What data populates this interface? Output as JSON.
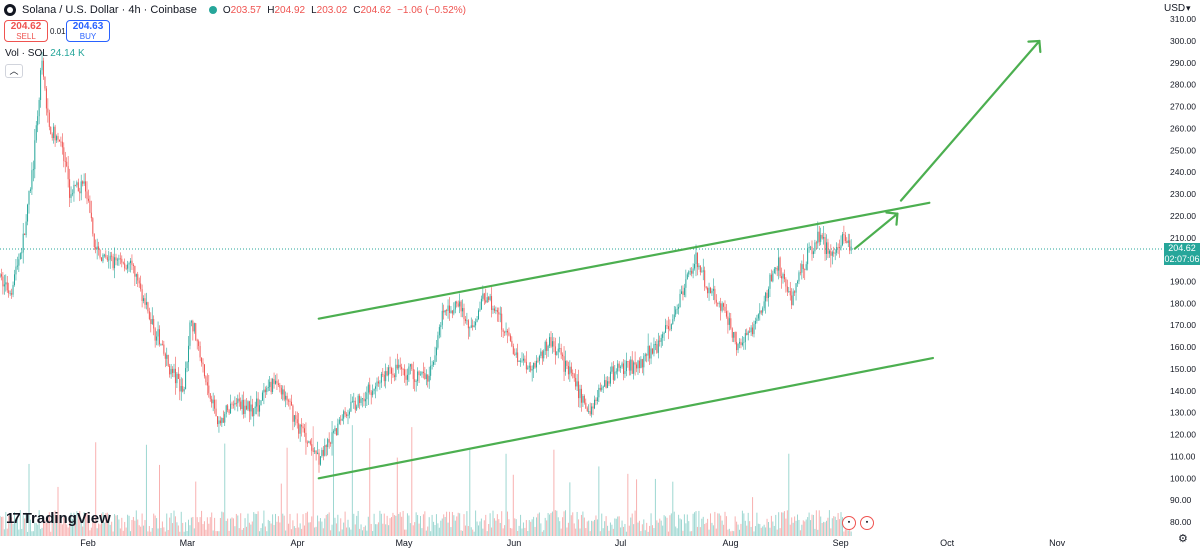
{
  "header": {
    "title": "Solana / U.S. Dollar · 4h · Coinbase",
    "o_label": "O",
    "o": "203.57",
    "h_label": "H",
    "h": "204.92",
    "l_label": "L",
    "l": "203.02",
    "c_label": "C",
    "c": "204.62",
    "change": "−1.06 (−0.52%)"
  },
  "trade": {
    "sell_price": "204.62",
    "sell_label": "SELL",
    "spread": "0.01",
    "buy_price": "204.63",
    "buy_label": "BUY"
  },
  "volume": {
    "label": "Vol · SOL",
    "value": "24.14 K"
  },
  "axis": {
    "currency": "USD",
    "current_price": "204.62",
    "countdown": "02:07:06"
  },
  "branding": {
    "name": "TradingView"
  },
  "colors": {
    "up": "#26a69a",
    "down": "#ef5350",
    "annotation": "#4caf50",
    "price_line": "#26a69a"
  },
  "chart_data": {
    "type": "candlestick",
    "y_ticks": [
      80,
      90,
      100,
      110,
      120,
      130,
      140,
      150,
      160,
      170,
      180,
      190,
      200,
      210,
      220,
      230,
      240,
      250,
      260,
      270,
      280,
      290,
      300,
      310
    ],
    "x_ticks": [
      "Feb",
      "Mar",
      "Apr",
      "May",
      "Jun",
      "Jul",
      "Aug",
      "Sep",
      "Oct",
      "Nov"
    ],
    "ylim": [
      76,
      311
    ],
    "price_path": [
      {
        "date": "2025-01-02",
        "price": 215
      },
      {
        "date": "2025-01-06",
        "price": 195
      },
      {
        "date": "2025-01-10",
        "price": 185
      },
      {
        "date": "2025-01-14",
        "price": 210
      },
      {
        "date": "2025-01-17",
        "price": 250
      },
      {
        "date": "2025-01-19",
        "price": 290
      },
      {
        "date": "2025-01-21",
        "price": 260
      },
      {
        "date": "2025-01-24",
        "price": 255
      },
      {
        "date": "2025-01-27",
        "price": 230
      },
      {
        "date": "2025-01-31",
        "price": 235
      },
      {
        "date": "2025-02-03",
        "price": 205
      },
      {
        "date": "2025-02-06",
        "price": 200
      },
      {
        "date": "2025-02-10",
        "price": 200
      },
      {
        "date": "2025-02-14",
        "price": 195
      },
      {
        "date": "2025-02-18",
        "price": 175
      },
      {
        "date": "2025-02-24",
        "price": 150
      },
      {
        "date": "2025-02-28",
        "price": 140
      },
      {
        "date": "2025-03-02",
        "price": 175
      },
      {
        "date": "2025-03-06",
        "price": 145
      },
      {
        "date": "2025-03-10",
        "price": 125
      },
      {
        "date": "2025-03-14",
        "price": 135
      },
      {
        "date": "2025-03-20",
        "price": 132
      },
      {
        "date": "2025-03-26",
        "price": 145
      },
      {
        "date": "2025-04-01",
        "price": 125
      },
      {
        "date": "2025-04-07",
        "price": 110
      },
      {
        "date": "2025-04-10",
        "price": 115
      },
      {
        "date": "2025-04-14",
        "price": 130
      },
      {
        "date": "2025-04-20",
        "price": 138
      },
      {
        "date": "2025-04-26",
        "price": 148
      },
      {
        "date": "2025-04-30",
        "price": 150
      },
      {
        "date": "2025-05-05",
        "price": 148
      },
      {
        "date": "2025-05-08",
        "price": 145
      },
      {
        "date": "2025-05-12",
        "price": 175
      },
      {
        "date": "2025-05-16",
        "price": 180
      },
      {
        "date": "2025-05-20",
        "price": 168
      },
      {
        "date": "2025-05-24",
        "price": 185
      },
      {
        "date": "2025-05-28",
        "price": 172
      },
      {
        "date": "2025-06-01",
        "price": 158
      },
      {
        "date": "2025-06-06",
        "price": 150
      },
      {
        "date": "2025-06-11",
        "price": 163
      },
      {
        "date": "2025-06-17",
        "price": 148
      },
      {
        "date": "2025-06-22",
        "price": 130
      },
      {
        "date": "2025-06-26",
        "price": 143
      },
      {
        "date": "2025-07-01",
        "price": 150
      },
      {
        "date": "2025-07-06",
        "price": 152
      },
      {
        "date": "2025-07-11",
        "price": 160
      },
      {
        "date": "2025-07-16",
        "price": 175
      },
      {
        "date": "2025-07-22",
        "price": 200
      },
      {
        "date": "2025-07-26",
        "price": 185
      },
      {
        "date": "2025-07-30",
        "price": 178
      },
      {
        "date": "2025-08-03",
        "price": 160
      },
      {
        "date": "2025-08-06",
        "price": 165
      },
      {
        "date": "2025-08-10",
        "price": 178
      },
      {
        "date": "2025-08-14",
        "price": 200
      },
      {
        "date": "2025-08-18",
        "price": 182
      },
      {
        "date": "2025-08-22",
        "price": 200
      },
      {
        "date": "2025-08-26",
        "price": 210
      },
      {
        "date": "2025-08-29",
        "price": 203
      },
      {
        "date": "2025-09-02",
        "price": 210
      },
      {
        "date": "2025-09-04",
        "price": 205
      }
    ],
    "annotations": {
      "upper_trendline": [
        {
          "date": "2025-04-07",
          "price": 173
        },
        {
          "date": "2025-09-26",
          "price": 226
        }
      ],
      "lower_trendline": [
        {
          "date": "2025-04-07",
          "price": 100
        },
        {
          "date": "2025-09-27",
          "price": 155
        }
      ],
      "arrow_short": [
        {
          "date": "2025-09-05",
          "price": 205
        },
        {
          "date": "2025-09-17",
          "price": 221
        }
      ],
      "arrow_long": [
        {
          "date": "2025-09-18",
          "price": 227
        },
        {
          "date": "2025-10-27",
          "price": 300
        }
      ]
    }
  }
}
